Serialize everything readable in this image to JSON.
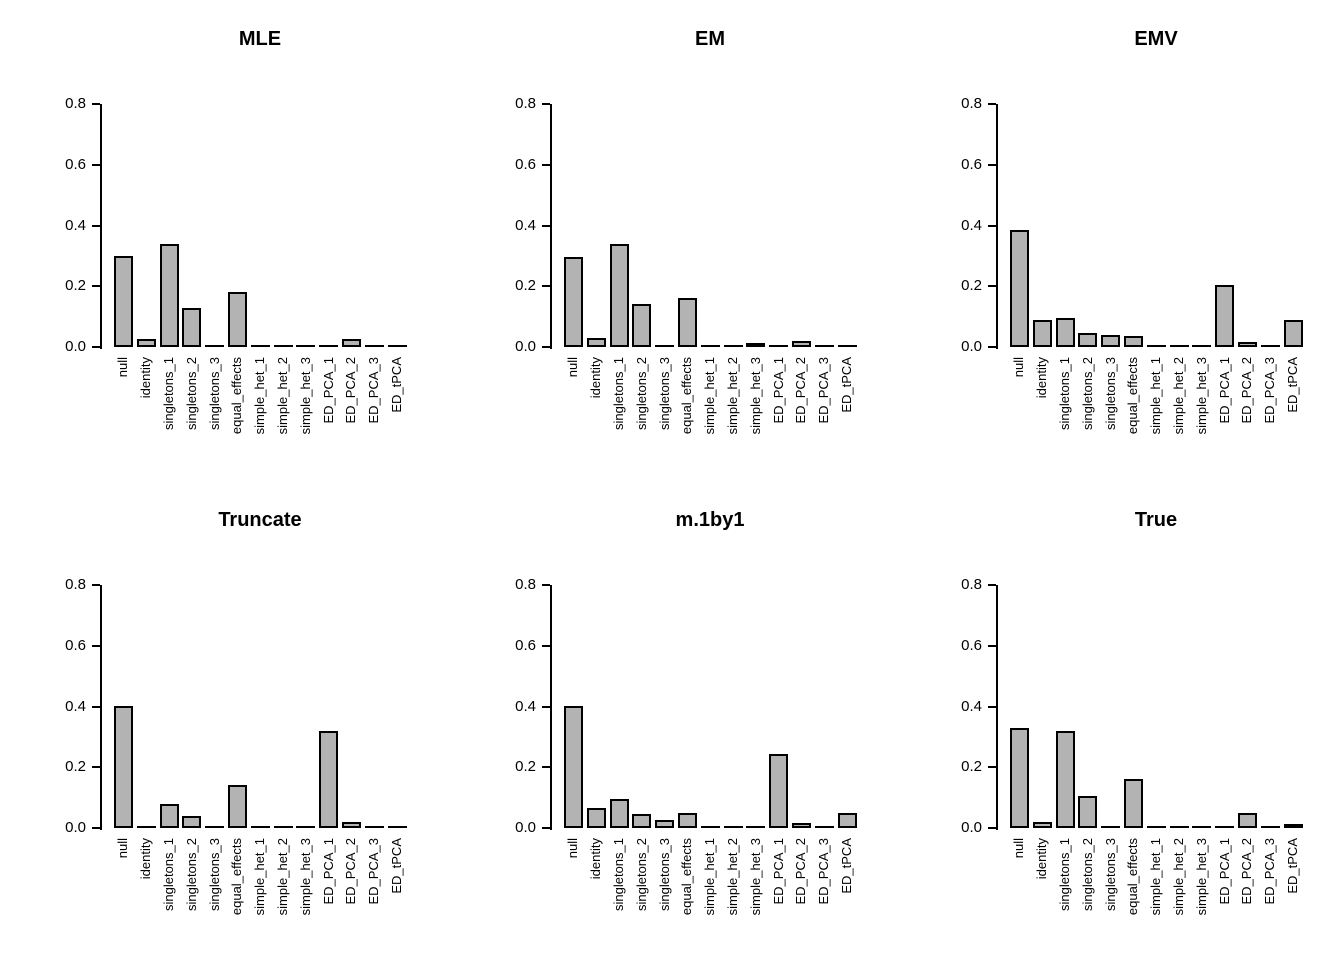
{
  "figure": {
    "background_color": "#ffffff",
    "bar_fill_color": "#b3b3b3",
    "bar_border_color": "#000000",
    "axis_color": "#000000",
    "layout": {
      "rows": 2,
      "cols": 3,
      "panel_order": [
        "MLE",
        "EM",
        "EMV",
        "Truncate",
        "m.1by1",
        "True"
      ]
    }
  },
  "chart_data": [
    {
      "type": "bar",
      "title": "MLE",
      "categories": [
        "null",
        "identity",
        "singletons_1",
        "singletons_2",
        "singletons_3",
        "equal_effects",
        "simple_het_1",
        "simple_het_2",
        "simple_het_3",
        "ED_PCA_1",
        "ED_PCA_2",
        "ED_PCA_3",
        "ED_tPCA"
      ],
      "values": [
        0.3,
        0.025,
        0.34,
        0.13,
        0,
        0.18,
        0,
        0,
        0,
        0,
        0.025,
        0,
        0
      ],
      "xlabel": "",
      "ylabel": "",
      "ylim": [
        0,
        0.8
      ],
      "yticks": [
        "0.0",
        "0.2",
        "0.4",
        "0.6",
        "0.8"
      ],
      "grid": false,
      "legend": false
    },
    {
      "type": "bar",
      "title": "EM",
      "categories": [
        "null",
        "identity",
        "singletons_1",
        "singletons_2",
        "singletons_3",
        "equal_effects",
        "simple_het_1",
        "simple_het_2",
        "simple_het_3",
        "ED_PCA_1",
        "ED_PCA_2",
        "ED_PCA_3",
        "ED_tPCA"
      ],
      "values": [
        0.295,
        0.03,
        0.34,
        0.14,
        0,
        0.16,
        0,
        0,
        0.01,
        0,
        0.02,
        0,
        0
      ],
      "xlabel": "",
      "ylabel": "",
      "ylim": [
        0,
        0.8
      ],
      "yticks": [
        "0.0",
        "0.2",
        "0.4",
        "0.6",
        "0.8"
      ],
      "grid": false,
      "legend": false
    },
    {
      "type": "bar",
      "title": "EMV",
      "categories": [
        "null",
        "identity",
        "singletons_1",
        "singletons_2",
        "singletons_3",
        "equal_effects",
        "simple_het_1",
        "simple_het_2",
        "simple_het_3",
        "ED_PCA_1",
        "ED_PCA_2",
        "ED_PCA_3",
        "ED_tPCA"
      ],
      "values": [
        0.385,
        0.09,
        0.095,
        0.045,
        0.04,
        0.035,
        0,
        0,
        0,
        0.205,
        0.015,
        0,
        0.09
      ],
      "xlabel": "",
      "ylabel": "",
      "ylim": [
        0,
        0.8
      ],
      "yticks": [
        "0.0",
        "0.2",
        "0.4",
        "0.6",
        "0.8"
      ],
      "grid": false,
      "legend": false
    },
    {
      "type": "bar",
      "title": "Truncate",
      "categories": [
        "null",
        "identity",
        "singletons_1",
        "singletons_2",
        "singletons_3",
        "equal_effects",
        "simple_het_1",
        "simple_het_2",
        "simple_het_3",
        "ED_PCA_1",
        "ED_PCA_2",
        "ED_PCA_3",
        "ED_tPCA"
      ],
      "values": [
        0.4,
        0,
        0.08,
        0.04,
        0,
        0.14,
        0,
        0,
        0,
        0.32,
        0.02,
        0,
        0
      ],
      "xlabel": "",
      "ylabel": "",
      "ylim": [
        0,
        0.8
      ],
      "yticks": [
        "0.0",
        "0.2",
        "0.4",
        "0.6",
        "0.8"
      ],
      "grid": false,
      "legend": false
    },
    {
      "type": "bar",
      "title": "m.1by1",
      "categories": [
        "null",
        "identity",
        "singletons_1",
        "singletons_2",
        "singletons_3",
        "equal_effects",
        "simple_het_1",
        "simple_het_2",
        "simple_het_3",
        "ED_PCA_1",
        "ED_PCA_2",
        "ED_PCA_3",
        "ED_tPCA"
      ],
      "values": [
        0.4,
        0.065,
        0.095,
        0.045,
        0.025,
        0.05,
        0,
        0,
        0,
        0.245,
        0.015,
        0,
        0.05
      ],
      "xlabel": "",
      "ylabel": "",
      "ylim": [
        0,
        0.8
      ],
      "yticks": [
        "0.0",
        "0.2",
        "0.4",
        "0.6",
        "0.8"
      ],
      "grid": false,
      "legend": false
    },
    {
      "type": "bar",
      "title": "True",
      "categories": [
        "null",
        "identity",
        "singletons_1",
        "singletons_2",
        "singletons_3",
        "equal_effects",
        "simple_het_1",
        "simple_het_2",
        "simple_het_3",
        "ED_PCA_1",
        "ED_PCA_2",
        "ED_PCA_3",
        "ED_tPCA"
      ],
      "values": [
        0.33,
        0.02,
        0.32,
        0.105,
        0,
        0.16,
        0,
        0,
        0,
        0,
        0.05,
        0,
        0.01
      ],
      "xlabel": "",
      "ylabel": "",
      "ylim": [
        0,
        0.8
      ],
      "yticks": [
        "0.0",
        "0.2",
        "0.4",
        "0.6",
        "0.8"
      ],
      "grid": false,
      "legend": false
    }
  ]
}
